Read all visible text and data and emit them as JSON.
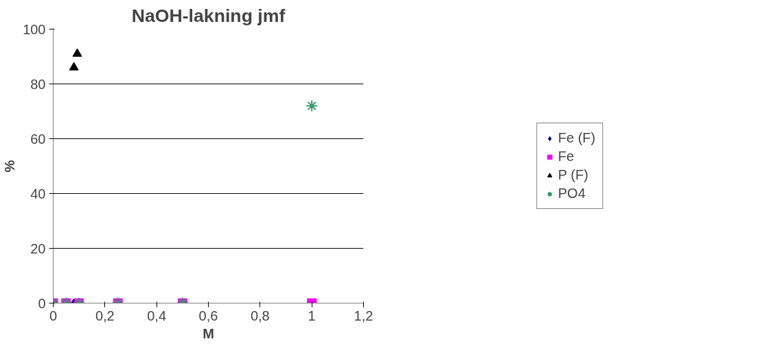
{
  "chart_data": {
    "type": "scatter",
    "title": "NaOH-lakning jmf",
    "xlabel": "M",
    "ylabel": "%",
    "series": [
      {
        "name": "Fe (F)",
        "color": "#000080",
        "marker": "diamond",
        "x": [
          0.08
        ],
        "values": [
          0
        ]
      },
      {
        "name": "Fe",
        "color": "#ff00ff",
        "marker": "square",
        "x": [
          0,
          0.05,
          0.1,
          0.25,
          0.5,
          1
        ],
        "values": [
          0,
          0,
          0,
          0,
          0,
          0
        ]
      },
      {
        "name": "P (F)",
        "color": "#000000",
        "marker": "triangle",
        "x": [
          0.08,
          0.093
        ],
        "values": [
          86,
          91
        ]
      },
      {
        "name": "PO4",
        "color": "#339966",
        "marker": "cross",
        "x": [
          0,
          0.05,
          0.1,
          0.25,
          0.5,
          1
        ],
        "values": [
          0,
          0,
          0,
          0,
          0,
          72
        ]
      }
    ],
    "xlim": [
      0,
      1.2
    ],
    "ylim": [
      0,
      100
    ],
    "xticks": [
      0,
      {
        "value": 0.2,
        "label": "0,2"
      },
      {
        "value": 0.4,
        "label": "0,4"
      },
      {
        "value": 0.6,
        "label": "0,6"
      },
      {
        "value": 0.8,
        "label": "0,8"
      },
      1,
      {
        "value": 1.2,
        "label": "1,2"
      }
    ],
    "yticks": [
      0,
      20,
      40,
      60,
      80,
      100
    ],
    "grid": "y",
    "legend": "right"
  }
}
